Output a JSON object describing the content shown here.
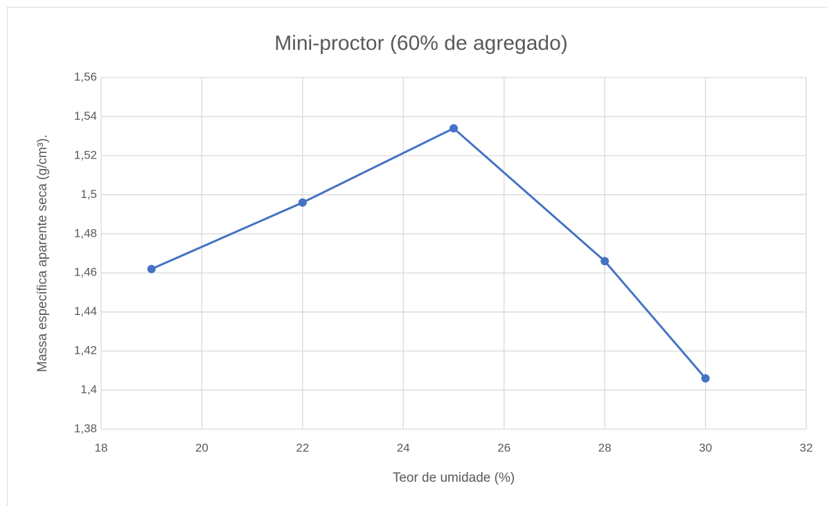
{
  "chart_data": {
    "type": "line",
    "title": "Mini-proctor (60% de agregado)",
    "x_label": "Teor de umidade (%)",
    "y_label": "Massa específica aparente seca (g/cm³).",
    "x": [
      19,
      22,
      25,
      28,
      30
    ],
    "series": [
      {
        "name": "Mini-proctor",
        "color": "#4472c4",
        "values": [
          1.462,
          1.496,
          1.534,
          1.466,
          1.406
        ]
      }
    ],
    "xlim": [
      18,
      32
    ],
    "xticks": [
      18,
      20,
      22,
      24,
      26,
      28,
      30,
      32
    ],
    "ylim": [
      1.38,
      1.56
    ],
    "yticks": [
      {
        "value": 1.38,
        "label": "1,38"
      },
      {
        "value": 1.4,
        "label": "1,4"
      },
      {
        "value": 1.42,
        "label": "1,42"
      },
      {
        "value": 1.44,
        "label": "1,44"
      },
      {
        "value": 1.46,
        "label": "1,46"
      },
      {
        "value": 1.48,
        "label": "1,48"
      },
      {
        "value": 1.5,
        "label": "1,5"
      },
      {
        "value": 1.52,
        "label": "1,52"
      },
      {
        "value": 1.54,
        "label": "1,54"
      },
      {
        "value": 1.56,
        "label": "1,56"
      }
    ],
    "grid": true,
    "markers": true
  }
}
